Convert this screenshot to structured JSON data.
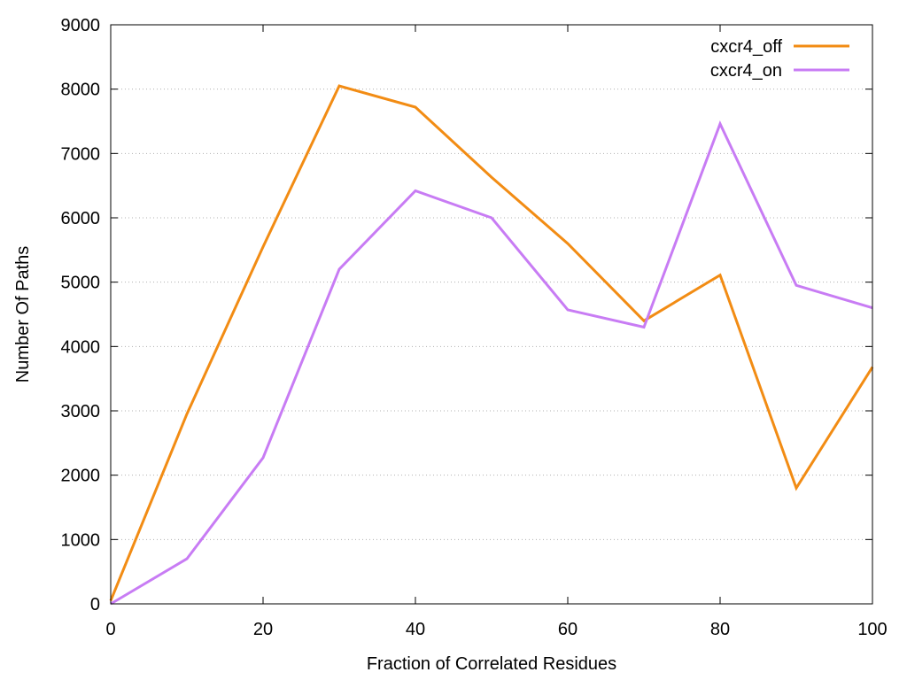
{
  "chart_data": {
    "type": "line",
    "title": "",
    "xlabel": "Fraction of Correlated Residues",
    "ylabel": "Number Of Paths",
    "xlim": [
      0,
      100
    ],
    "ylim": [
      0,
      9000
    ],
    "x_ticks": [
      "0",
      "20",
      "40",
      "60",
      "80",
      "100"
    ],
    "y_ticks": [
      "0",
      "1000",
      "2000",
      "3000",
      "4000",
      "5000",
      "6000",
      "7000",
      "8000",
      "9000"
    ],
    "grid": "horizontal dotted",
    "legend_position": "top-right",
    "x": [
      0,
      10,
      20,
      30,
      40,
      50,
      60,
      70,
      80,
      90,
      100
    ],
    "series": [
      {
        "name": "cxcr4_off",
        "color": "#f28c14",
        "values": [
          50,
          2950,
          5550,
          8050,
          7720,
          6630,
          5600,
          4400,
          5110,
          1800,
          3680
        ]
      },
      {
        "name": "cxcr4_on",
        "color": "#c87cf4",
        "values": [
          0,
          700,
          2270,
          5200,
          6420,
          6000,
          4570,
          4300,
          7460,
          4950,
          4600
        ]
      }
    ]
  }
}
